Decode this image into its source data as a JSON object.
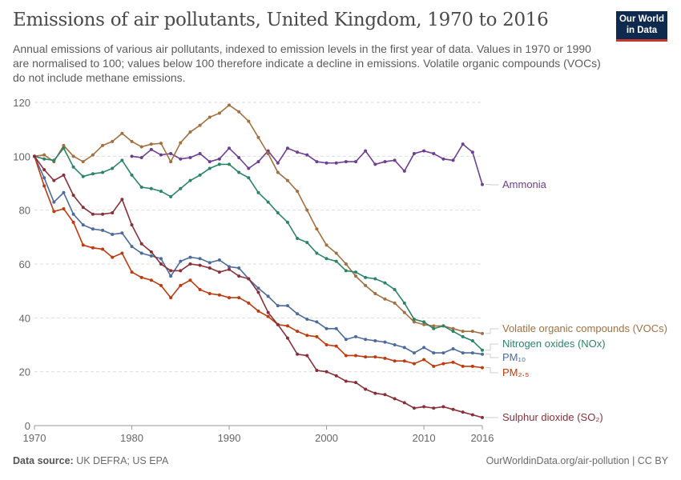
{
  "header": {
    "title": "Emissions of air pollutants, United Kingdom, 1970 to 2016",
    "subtitle": "Annual emissions of various air pollutants, indexed to emission levels in the first year of data. Values in 1970 or 1990 are normalised to 100; values below 100 therefore indicate a decline in emissions. Volatile organic compounds (VOCs) do not include methane emissions.",
    "logo": "Our World in Data"
  },
  "footer": {
    "source_label": "Data source:",
    "source": "UK DEFRA; US EPA",
    "url_license": "OurWorldinData.org/air-pollution | CC BY"
  },
  "chart_data": {
    "type": "line",
    "title": "Emissions of air pollutants, United Kingdom, 1970 to 2016",
    "xlim": [
      1970,
      2016
    ],
    "ylim": [
      0,
      120
    ],
    "grid": "horizontal dashed",
    "legend": "right (end-of-line labels)",
    "x_ticks": [
      "1970",
      "1980",
      "1990",
      "2000",
      "2010",
      "2016"
    ],
    "y_ticks": [
      "0",
      "20",
      "40",
      "60",
      "80",
      "100",
      "120"
    ],
    "series": [
      {
        "name": "Ammonia",
        "color": "#6d3e91",
        "start": 1980,
        "values": [
          100,
          99.5,
          102.5,
          100.5,
          101,
          99,
          99.5,
          101,
          98,
          99,
          103,
          99.5,
          95.5,
          98,
          102,
          97.5,
          103,
          101.5,
          100.5,
          98,
          97.5,
          97.5,
          98,
          98,
          102,
          97,
          98,
          98.5,
          94.5,
          101,
          102,
          101,
          99,
          98.5,
          104.5,
          101.5,
          89.5
        ]
      },
      {
        "name": "Volatile organic compounds (VOCs)",
        "color": "#a2703f",
        "start": 1970,
        "values": [
          100,
          100.5,
          98,
          104,
          100,
          98,
          100.5,
          104,
          105.5,
          108.5,
          105.5,
          103.5,
          104.5,
          104.8,
          98,
          105,
          109,
          111.5,
          114.5,
          116,
          119,
          116.5,
          113,
          107,
          101,
          94,
          91,
          87,
          80,
          73,
          67,
          64,
          60,
          55.5,
          52,
          49,
          47,
          45.5,
          42,
          38.5,
          37.5,
          37,
          37,
          36,
          35,
          35,
          34.2
        ]
      },
      {
        "name": "Nitrogen oxides (NOx)",
        "color": "#2c8465",
        "start": 1970,
        "values": [
          100,
          99,
          98.5,
          103,
          96,
          92.5,
          93.5,
          94,
          95.5,
          98.5,
          93,
          88.5,
          88,
          87,
          85,
          88,
          91,
          93,
          95.5,
          97,
          97,
          94,
          92,
          86.5,
          83,
          79,
          75.5,
          69.5,
          68,
          64,
          62,
          61,
          57.5,
          57,
          55,
          54.5,
          53,
          50.5,
          45.5,
          39.5,
          38.5,
          36,
          37,
          35,
          33,
          31.5,
          28
        ]
      },
      {
        "name": "PM₁₀",
        "color": "#4c6a9c",
        "start": 1970,
        "values": [
          100,
          92,
          83,
          86.5,
          78.5,
          74.5,
          73,
          72.5,
          71,
          71.5,
          66.5,
          64,
          63,
          62,
          55.5,
          61,
          62.5,
          62,
          60.5,
          61.5,
          59,
          58.5,
          54.5,
          51,
          48,
          44.5,
          44.5,
          41.5,
          39.5,
          38.5,
          36,
          36,
          32,
          33,
          32,
          31.5,
          31,
          30,
          29,
          27,
          29,
          27,
          27,
          28.5,
          27,
          27,
          26.5
        ]
      },
      {
        "name": "PM₂.₅",
        "color": "#be3a0f",
        "start": 1970,
        "values": [
          100,
          89,
          79.5,
          80.5,
          75.5,
          67,
          66,
          65.5,
          62.5,
          64,
          57,
          55,
          54,
          52,
          47.5,
          52,
          54,
          50.5,
          49,
          48.5,
          47.5,
          47.5,
          45.5,
          42.5,
          40.5,
          37.5,
          37,
          35,
          33.5,
          33,
          30,
          29.5,
          26,
          26,
          25.5,
          25.5,
          25,
          24,
          24,
          23,
          24.5,
          22,
          23,
          23.5,
          22,
          22,
          21.5
        ]
      },
      {
        "name": "Sulphur dioxide (SO₂)",
        "color": "#883039",
        "start": 1970,
        "values": [
          100,
          95,
          91,
          93,
          85.5,
          81,
          78.5,
          78.5,
          79,
          84,
          74.5,
          67.5,
          64.5,
          60,
          57.5,
          57.5,
          60,
          59.5,
          58.5,
          57,
          58,
          55.5,
          54.5,
          49.5,
          42,
          37.5,
          32.5,
          26.5,
          26,
          20.5,
          20,
          18.5,
          16.5,
          16,
          13.5,
          12,
          11.5,
          10,
          8.5,
          6.5,
          7,
          6.5,
          7,
          6,
          5,
          4,
          3
        ]
      }
    ]
  }
}
